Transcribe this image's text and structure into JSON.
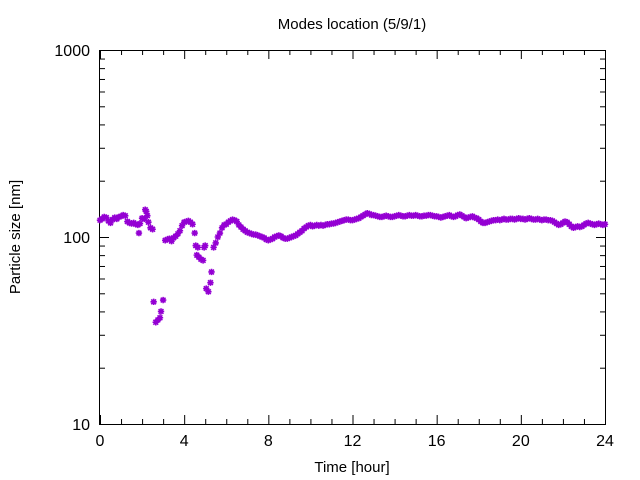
{
  "chart_data": {
    "type": "scatter",
    "title": "Modes location (5/9/1)",
    "xlabel": "Time [hour]",
    "ylabel": "Particle size [nm]",
    "xlim": [
      0,
      24
    ],
    "ylim": [
      10,
      1000
    ],
    "yscale": "log",
    "xticks": [
      0,
      4,
      8,
      12,
      16,
      20,
      24
    ],
    "xtick_labels": [
      "0",
      "4",
      "8",
      "12",
      "16",
      "20",
      "24"
    ],
    "yticks": [
      10,
      100,
      1000
    ],
    "ytick_labels": [
      "10",
      "100",
      "1000"
    ],
    "grid": false,
    "legend": "none",
    "marker_color": "#9400d3",
    "series": [
      {
        "points": [
          [
            0.0,
            123
          ],
          [
            0.1,
            125
          ],
          [
            0.2,
            128
          ],
          [
            0.3,
            127
          ],
          [
            0.4,
            122
          ],
          [
            0.5,
            119
          ],
          [
            0.6,
            124
          ],
          [
            0.7,
            127
          ],
          [
            0.8,
            125
          ],
          [
            0.9,
            128
          ],
          [
            1.0,
            129
          ],
          [
            1.1,
            131
          ],
          [
            1.2,
            130
          ],
          [
            1.3,
            121
          ],
          [
            1.4,
            119
          ],
          [
            1.5,
            118
          ],
          [
            1.6,
            119
          ],
          [
            1.7,
            117
          ],
          [
            1.8,
            116
          ],
          [
            1.85,
            105
          ],
          [
            1.9,
            118
          ],
          [
            2.0,
            126
          ],
          [
            2.1,
            125
          ],
          [
            2.15,
            140
          ],
          [
            2.2,
            137
          ],
          [
            2.25,
            130
          ],
          [
            2.3,
            120
          ],
          [
            2.4,
            112
          ],
          [
            2.5,
            110
          ],
          [
            2.55,
            45
          ],
          [
            2.65,
            35
          ],
          [
            2.75,
            36
          ],
          [
            2.85,
            37
          ],
          [
            2.9,
            40
          ],
          [
            3.0,
            46
          ],
          [
            3.1,
            96
          ],
          [
            3.2,
            97
          ],
          [
            3.3,
            98
          ],
          [
            3.4,
            95
          ],
          [
            3.5,
            99
          ],
          [
            3.6,
            101
          ],
          [
            3.7,
            104
          ],
          [
            3.8,
            108
          ],
          [
            3.9,
            115
          ],
          [
            4.0,
            120
          ],
          [
            4.1,
            121
          ],
          [
            4.2,
            122
          ],
          [
            4.3,
            120
          ],
          [
            4.4,
            117
          ],
          [
            4.5,
            105
          ],
          [
            4.55,
            90
          ],
          [
            4.6,
            80
          ],
          [
            4.65,
            88
          ],
          [
            4.7,
            78
          ],
          [
            4.8,
            76
          ],
          [
            4.9,
            75
          ],
          [
            4.95,
            88
          ],
          [
            5.0,
            90
          ],
          [
            5.05,
            53
          ],
          [
            5.15,
            51
          ],
          [
            5.25,
            57
          ],
          [
            5.3,
            65
          ],
          [
            5.4,
            88
          ],
          [
            5.5,
            93
          ],
          [
            5.6,
            100
          ],
          [
            5.7,
            105
          ],
          [
            5.8,
            112
          ],
          [
            5.9,
            116
          ],
          [
            6.0,
            117
          ],
          [
            6.1,
            120
          ],
          [
            6.2,
            122
          ],
          [
            6.3,
            124
          ],
          [
            6.4,
            123
          ],
          [
            6.5,
            121
          ],
          [
            6.6,
            116
          ],
          [
            6.7,
            113
          ],
          [
            6.8,
            110
          ],
          [
            6.9,
            108
          ],
          [
            7.0,
            106
          ],
          [
            7.1,
            105
          ],
          [
            7.2,
            104
          ],
          [
            7.3,
            103
          ],
          [
            7.4,
            103
          ],
          [
            7.5,
            102
          ],
          [
            7.6,
            101
          ],
          [
            7.7,
            100
          ],
          [
            7.8,
            99
          ],
          [
            7.9,
            97
          ],
          [
            8.0,
            96
          ],
          [
            8.1,
            97
          ],
          [
            8.2,
            98
          ],
          [
            8.3,
            100
          ],
          [
            8.4,
            101
          ],
          [
            8.5,
            102
          ],
          [
            8.6,
            101
          ],
          [
            8.7,
            99
          ],
          [
            8.8,
            98
          ],
          [
            8.9,
            98
          ],
          [
            9.0,
            99
          ],
          [
            9.1,
            100
          ],
          [
            9.2,
            101
          ],
          [
            9.3,
            102
          ],
          [
            9.4,
            104
          ],
          [
            9.5,
            106
          ],
          [
            9.6,
            108
          ],
          [
            9.7,
            111
          ],
          [
            9.8,
            113
          ],
          [
            9.9,
            115
          ],
          [
            10.0,
            116
          ],
          [
            10.1,
            114
          ],
          [
            10.2,
            115
          ],
          [
            10.3,
            116
          ],
          [
            10.4,
            115
          ],
          [
            10.5,
            116
          ],
          [
            10.6,
            115
          ],
          [
            10.7,
            116
          ],
          [
            10.8,
            117
          ],
          [
            10.9,
            117
          ],
          [
            11.0,
            118
          ],
          [
            11.1,
            118
          ],
          [
            11.2,
            119
          ],
          [
            11.3,
            120
          ],
          [
            11.4,
            121
          ],
          [
            11.5,
            122
          ],
          [
            11.6,
            123
          ],
          [
            11.7,
            124
          ],
          [
            11.8,
            124
          ],
          [
            11.9,
            123
          ],
          [
            12.0,
            123
          ],
          [
            12.1,
            124
          ],
          [
            12.2,
            125
          ],
          [
            12.3,
            126
          ],
          [
            12.4,
            128
          ],
          [
            12.5,
            130
          ],
          [
            12.6,
            132
          ],
          [
            12.7,
            134
          ],
          [
            12.8,
            133
          ],
          [
            12.9,
            131
          ],
          [
            13.0,
            131
          ],
          [
            13.1,
            130
          ],
          [
            13.2,
            129
          ],
          [
            13.3,
            128
          ],
          [
            13.4,
            128
          ],
          [
            13.5,
            129
          ],
          [
            13.6,
            130
          ],
          [
            13.7,
            129
          ],
          [
            13.8,
            128
          ],
          [
            13.9,
            128
          ],
          [
            14.0,
            129
          ],
          [
            14.1,
            130
          ],
          [
            14.2,
            131
          ],
          [
            14.3,
            130
          ],
          [
            14.4,
            129
          ],
          [
            14.5,
            129
          ],
          [
            14.6,
            130
          ],
          [
            14.7,
            131
          ],
          [
            14.8,
            130
          ],
          [
            14.9,
            130
          ],
          [
            15.0,
            131
          ],
          [
            15.1,
            130
          ],
          [
            15.2,
            129
          ],
          [
            15.3,
            129
          ],
          [
            15.4,
            130
          ],
          [
            15.5,
            130
          ],
          [
            15.6,
            131
          ],
          [
            15.7,
            131
          ],
          [
            15.8,
            130
          ],
          [
            15.9,
            129
          ],
          [
            16.0,
            129
          ],
          [
            16.1,
            128
          ],
          [
            16.2,
            127
          ],
          [
            16.3,
            128
          ],
          [
            16.4,
            129
          ],
          [
            16.5,
            130
          ],
          [
            16.6,
            131
          ],
          [
            16.7,
            129
          ],
          [
            16.8,
            128
          ],
          [
            16.9,
            129
          ],
          [
            17.0,
            131
          ],
          [
            17.1,
            132
          ],
          [
            17.2,
            130
          ],
          [
            17.3,
            128
          ],
          [
            17.4,
            126
          ],
          [
            17.5,
            127
          ],
          [
            17.6,
            128
          ],
          [
            17.7,
            129
          ],
          [
            17.8,
            127
          ],
          [
            17.9,
            126
          ],
          [
            18.0,
            124
          ],
          [
            18.1,
            121
          ],
          [
            18.2,
            119
          ],
          [
            18.3,
            119
          ],
          [
            18.4,
            120
          ],
          [
            18.5,
            121
          ],
          [
            18.6,
            122
          ],
          [
            18.7,
            123
          ],
          [
            18.8,
            123
          ],
          [
            18.9,
            124
          ],
          [
            19.0,
            123
          ],
          [
            19.1,
            124
          ],
          [
            19.2,
            125
          ],
          [
            19.3,
            124
          ],
          [
            19.4,
            124
          ],
          [
            19.5,
            125
          ],
          [
            19.6,
            125
          ],
          [
            19.7,
            124
          ],
          [
            19.8,
            125
          ],
          [
            19.9,
            126
          ],
          [
            20.0,
            125
          ],
          [
            20.1,
            125
          ],
          [
            20.2,
            124
          ],
          [
            20.3,
            125
          ],
          [
            20.4,
            126
          ],
          [
            20.5,
            125
          ],
          [
            20.6,
            124
          ],
          [
            20.7,
            124
          ],
          [
            20.8,
            125
          ],
          [
            20.9,
            124
          ],
          [
            21.0,
            123
          ],
          [
            21.1,
            124
          ],
          [
            21.2,
            124
          ],
          [
            21.3,
            123
          ],
          [
            21.4,
            123
          ],
          [
            21.5,
            122
          ],
          [
            21.6,
            120
          ],
          [
            21.7,
            118
          ],
          [
            21.8,
            116
          ],
          [
            21.9,
            117
          ],
          [
            22.0,
            119
          ],
          [
            22.1,
            121
          ],
          [
            22.2,
            120
          ],
          [
            22.3,
            117
          ],
          [
            22.4,
            114
          ],
          [
            22.5,
            112
          ],
          [
            22.6,
            113
          ],
          [
            22.7,
            114
          ],
          [
            22.8,
            113
          ],
          [
            22.9,
            114
          ],
          [
            23.0,
            116
          ],
          [
            23.1,
            118
          ],
          [
            23.2,
            119
          ],
          [
            23.3,
            118
          ],
          [
            23.4,
            117
          ],
          [
            23.5,
            116
          ],
          [
            23.6,
            117
          ],
          [
            23.7,
            118
          ],
          [
            23.8,
            117
          ],
          [
            23.9,
            116
          ],
          [
            24.0,
            117
          ]
        ]
      }
    ]
  }
}
